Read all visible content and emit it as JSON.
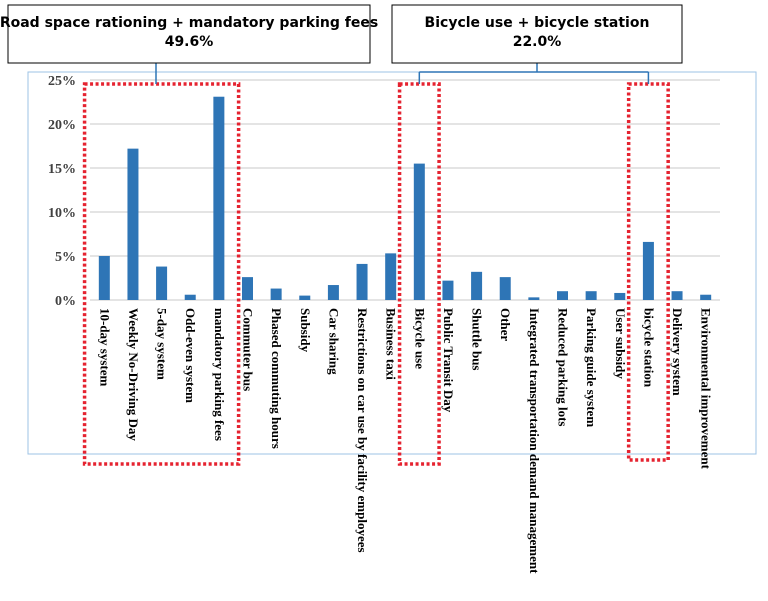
{
  "chart_data": {
    "type": "bar",
    "categories": [
      "10-day system",
      "Weekly No-Driving Day",
      "5-day system",
      "Odd-even system",
      "mandatory parking fees",
      "Commuter bus",
      "Phased commuting hours",
      "Subsidy",
      "Car sharing",
      "Restrictions on car use by facility employees",
      "Business taxi",
      "Bicycle use",
      "Public Transit Day",
      "Shuttle bus",
      "Other",
      "Integrated transportation demand management",
      "Reduced parking lots",
      "Parking guide system",
      "User subsidy",
      "bicycle station",
      "Delivery system",
      "Environmental improvement"
    ],
    "values": [
      5.0,
      17.2,
      3.8,
      0.6,
      23.1,
      2.6,
      1.3,
      0.5,
      1.7,
      4.1,
      5.3,
      15.5,
      2.2,
      3.2,
      2.6,
      0.3,
      1.0,
      1.0,
      0.8,
      6.6,
      1.0,
      0.6
    ],
    "y_ticks": [
      "0%",
      "5%",
      "10%",
      "15%",
      "20%",
      "25%"
    ],
    "ylim": [
      0,
      25
    ],
    "grid": true,
    "bar_color": "#2e75b6",
    "title": "",
    "xlabel": "",
    "ylabel": ""
  },
  "callouts": [
    {
      "title": "Road space rationing + mandatory parking fees",
      "value": "49.6%",
      "highlight_categories": [
        "10-day system",
        "Weekly No-Driving Day",
        "5-day system",
        "Odd-even system",
        "mandatory parking fees"
      ]
    },
    {
      "title": "Bicycle use + bicycle station",
      "value": "22.0%",
      "highlight_categories": [
        "Bicycle use",
        "bicycle station"
      ]
    }
  ],
  "colors": {
    "highlight_border": "#e52330",
    "connector": "#2e75b6",
    "grid": "#c8c8c8",
    "frame": "#9dc3e6"
  }
}
